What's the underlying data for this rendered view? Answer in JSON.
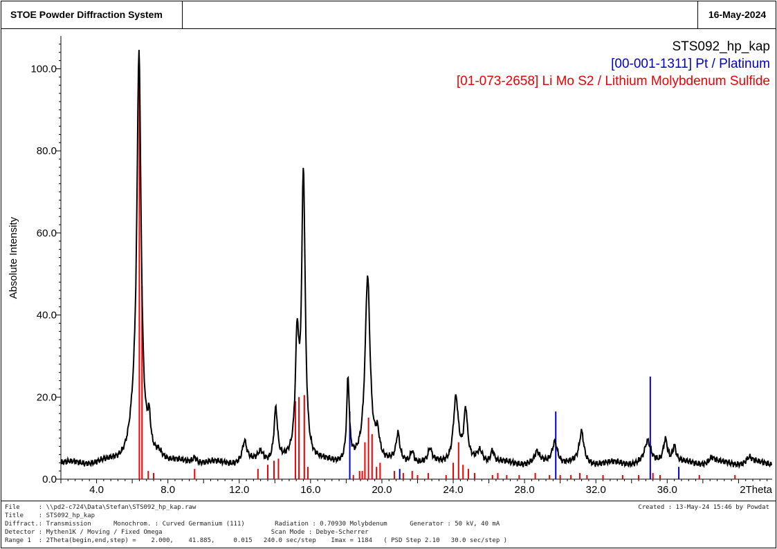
{
  "header": {
    "app_title": "STOE Powder Diffraction System",
    "date": "16-May-2024"
  },
  "legend": {
    "sample": "STS092_hp_kap",
    "pt_ref": "[00-001-1311] Pt / Platinum",
    "li_ref": "[01-073-2658] Li Mo S2 / Lithium Molybdenum Sulfide",
    "colors": {
      "sample": "#000000",
      "pt_ref": "#0000cc",
      "li_ref": "#ee0000"
    }
  },
  "footer": {
    "line1": "File     : \\\\pd2-c724\\Data\\Stefan\\STS092_hp_kap.raw",
    "created": "Created : 13-May-24 15:46 by Powdat",
    "line2": "Title    : STS092_hp_kap",
    "line3": "Diffract.: Transmission      Monochrom. : Curved Germanium (111)        Radiation : 0.70930 Molybdenum      Generator : 50 kV, 40 mA",
    "line4": "Detector : Mythen1K / Moving / Fixed Omega                             Scan Mode : Debye-Scherrer",
    "line5": "Range 1  : 2Theta(begin,end,step) =    2.000,    41.885,     0.015   240.0 sec/step    Imax = 1184   ( PSD Step 2.10   30.0 sec/step )"
  },
  "chart_data": {
    "type": "line",
    "ylabel": "Absolute Intensity",
    "xlabel": "2Theta",
    "xlim": [
      2.0,
      41.885
    ],
    "ylim": [
      0,
      108
    ],
    "x_ticks": [
      "4.0",
      "8.0",
      "12.0",
      "16.0",
      "20.0",
      "24.0",
      "28.0",
      "32.0",
      "36.0"
    ],
    "y_ticks": [
      "0.0",
      "20.0",
      "40.0",
      "60.0",
      "80.0",
      "100.0"
    ],
    "background": 3.8,
    "series": [
      {
        "name": "STS092_hp_kap",
        "color": "#000000",
        "peaks": [
          [
            6.38,
            95,
            0.14
          ],
          [
            6.12,
            8,
            0.35
          ],
          [
            6.95,
            7,
            0.1
          ],
          [
            7.5,
            2,
            0.25
          ],
          [
            9.5,
            1.5,
            0.15
          ],
          [
            12.3,
            5,
            0.15
          ],
          [
            13.2,
            2.5,
            0.2
          ],
          [
            14.05,
            13,
            0.12
          ],
          [
            15.25,
            28,
            0.12
          ],
          [
            15.6,
            70,
            0.12
          ],
          [
            18.1,
            20,
            0.09
          ],
          [
            19.2,
            45,
            0.17
          ],
          [
            19.75,
            6,
            0.15
          ],
          [
            20.9,
            6.5,
            0.12
          ],
          [
            21.7,
            3,
            0.12
          ],
          [
            22.7,
            3,
            0.12
          ],
          [
            24.15,
            16,
            0.17
          ],
          [
            24.7,
            12,
            0.12
          ],
          [
            25.5,
            3,
            0.2
          ],
          [
            26.2,
            3,
            0.12
          ],
          [
            28.7,
            2.5,
            0.15
          ],
          [
            29.7,
            5.5,
            0.18
          ],
          [
            31.2,
            7.5,
            0.15
          ],
          [
            34.9,
            5,
            0.2
          ],
          [
            35.9,
            6,
            0.15
          ],
          [
            36.4,
            4,
            0.12
          ],
          [
            38.5,
            1.5,
            0.2
          ],
          [
            40.6,
            1.5,
            0.2
          ]
        ]
      },
      {
        "name": "[00-001-1311] Pt / Platinum",
        "color": "#0000cc",
        "sticks": [
          [
            18.2,
            16.5
          ],
          [
            21.0,
            2.5
          ],
          [
            29.75,
            16.5
          ],
          [
            35.05,
            25
          ],
          [
            36.65,
            3
          ]
        ]
      },
      {
        "name": "[01-073-2658] Li Mo S2 / Lithium Molybdenum Sulfide",
        "color": "#ee0000",
        "sticks": [
          [
            6.4,
            100
          ],
          [
            6.55,
            47
          ],
          [
            6.9,
            2
          ],
          [
            7.2,
            1.5
          ],
          [
            9.5,
            2.5
          ],
          [
            13.05,
            2.5
          ],
          [
            13.6,
            3.5
          ],
          [
            13.95,
            4.5
          ],
          [
            14.2,
            5
          ],
          [
            15.15,
            19
          ],
          [
            15.35,
            20
          ],
          [
            15.65,
            20.5
          ],
          [
            15.85,
            3
          ],
          [
            18.4,
            1
          ],
          [
            18.75,
            2
          ],
          [
            18.9,
            2
          ],
          [
            19.05,
            9
          ],
          [
            19.25,
            15
          ],
          [
            19.45,
            11
          ],
          [
            19.7,
            3
          ],
          [
            19.9,
            4
          ],
          [
            20.7,
            2
          ],
          [
            21.2,
            1.5
          ],
          [
            21.7,
            2
          ],
          [
            22.0,
            1
          ],
          [
            22.6,
            1.5
          ],
          [
            23.6,
            1
          ],
          [
            24.0,
            4
          ],
          [
            24.3,
            9
          ],
          [
            24.55,
            3.5
          ],
          [
            24.85,
            2.5
          ],
          [
            25.2,
            1.5
          ],
          [
            26.2,
            1
          ],
          [
            26.5,
            1.5
          ],
          [
            27.0,
            1
          ],
          [
            27.7,
            1
          ],
          [
            28.6,
            1.5
          ],
          [
            29.4,
            1
          ],
          [
            30.0,
            1
          ],
          [
            30.6,
            1
          ],
          [
            31.1,
            1.5
          ],
          [
            31.5,
            1
          ],
          [
            32.4,
            1
          ],
          [
            33.5,
            1
          ],
          [
            34.4,
            1
          ],
          [
            35.2,
            1.5
          ],
          [
            35.6,
            1
          ],
          [
            37.8,
            1
          ],
          [
            39.8,
            1
          ]
        ]
      }
    ]
  }
}
